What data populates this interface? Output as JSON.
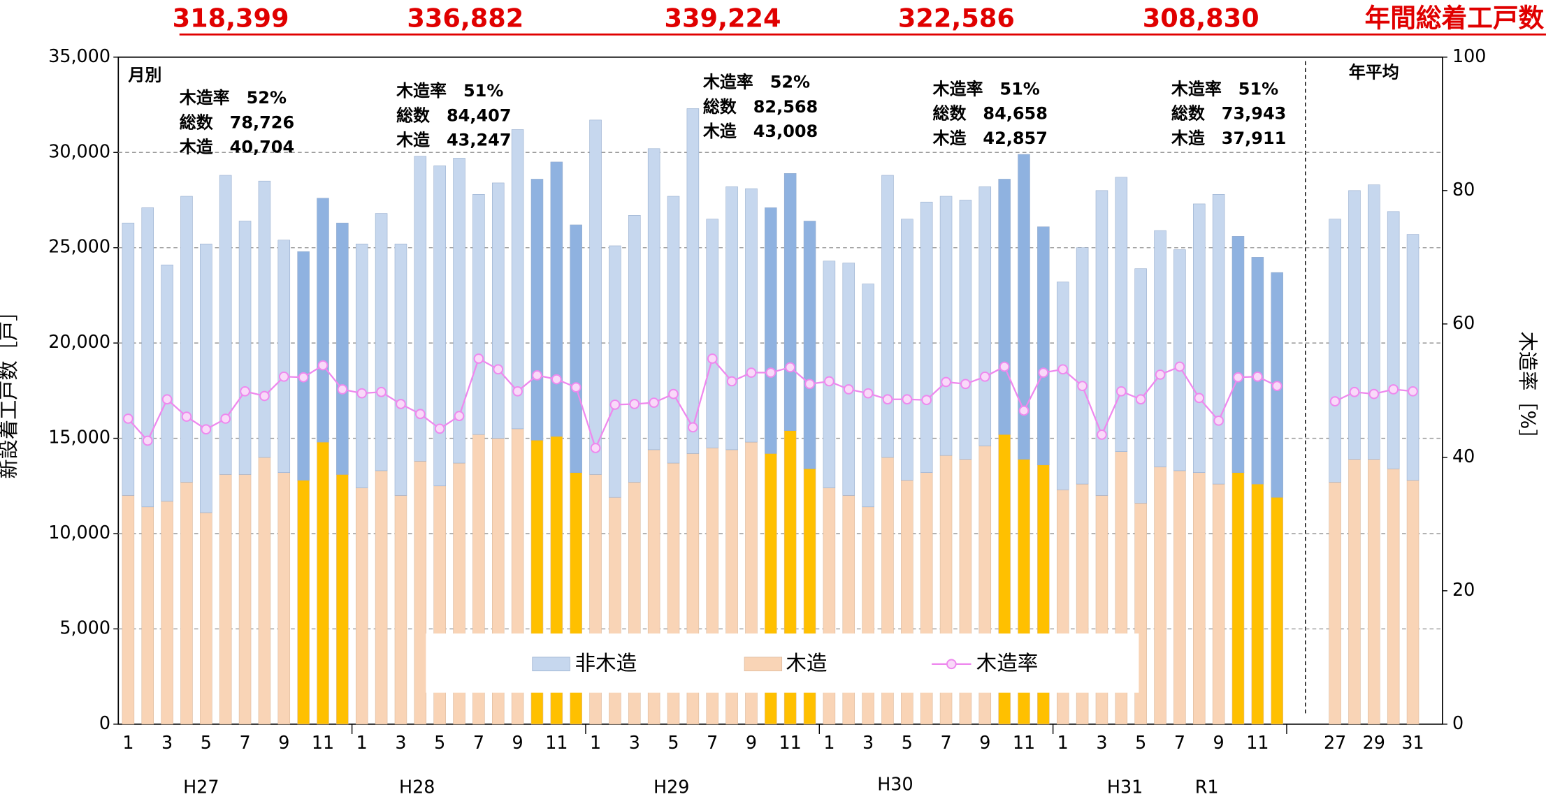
{
  "chart_data": {
    "type": "bar",
    "stacked": true,
    "categories": [
      "1",
      null,
      "3",
      null,
      "5",
      null,
      "7",
      null,
      "9",
      null,
      "11",
      null,
      "1",
      null,
      "3",
      null,
      "5",
      null,
      "7",
      null,
      "9",
      null,
      "11",
      null,
      "1",
      null,
      "3",
      null,
      "5",
      null,
      "7",
      null,
      "9",
      null,
      "11",
      null,
      "1",
      null,
      "3",
      null,
      "5",
      null,
      "7",
      null,
      "9",
      null,
      "11",
      null,
      "1",
      null,
      "3",
      null,
      "5",
      null,
      "7",
      null,
      "9",
      null,
      "11",
      null,
      "27",
      null,
      "29",
      null,
      "31"
    ],
    "groups": [
      "H27",
      "H28",
      "H29",
      "H30",
      "H31",
      "R1"
    ],
    "panel_labels": [
      "月別",
      "年平均"
    ],
    "y_label": "新設着工戸数［戸］",
    "y2_label": "木造率［%］",
    "annual_total_title": "年間総着工戸数",
    "annual_totals": [
      "318,399",
      "336,882",
      "339,224",
      "322,586",
      "308,830"
    ],
    "year_notes": [
      [
        "木造率　52%",
        "総数　78,726",
        "木造　40,704"
      ],
      [
        "木造率　51%",
        "総数　84,407",
        "木造　43,247"
      ],
      [
        "木造率　52%",
        "総数　82,568",
        "木造　43,008"
      ],
      [
        "木造率　51%",
        "総数　84,658",
        "木造　42,857"
      ],
      [
        "木造率　51%",
        "総数　73,943",
        "木造　37,911"
      ]
    ],
    "highlighted": [
      9,
      10,
      11,
      21,
      22,
      23,
      33,
      34,
      35,
      45,
      46,
      47,
      57,
      58,
      59
    ],
    "series": [
      {
        "name": "非木造",
        "color": "#c6d7ee",
        "highlight_color": "#8fb2e0",
        "values": [
          14300,
          15700,
          12400,
          15000,
          14100,
          15700,
          13300,
          14500,
          12200,
          12000,
          12800,
          13200,
          12800,
          13500,
          13200,
          16000,
          16800,
          16000,
          12600,
          13400,
          15700,
          13700,
          14400,
          13000,
          18600,
          13200,
          14000,
          15800,
          14000,
          18100,
          12000,
          13800,
          13300,
          12900,
          13500,
          13000,
          11900,
          12200,
          11700,
          14800,
          13700,
          14200,
          13600,
          13600,
          13600,
          13400,
          16000,
          12500,
          10900,
          12400,
          16000,
          14400,
          12300,
          12400,
          11600,
          14100,
          15200,
          12400,
          11900,
          11800,
          13800,
          14100,
          14400,
          13500,
          12900
        ]
      },
      {
        "name": "木造",
        "color": "#f9d4b6",
        "highlight_color": "#ffc000",
        "values": [
          12000,
          11400,
          11700,
          12700,
          11100,
          13100,
          13100,
          14000,
          13200,
          12800,
          14800,
          13100,
          12400,
          13300,
          12000,
          13800,
          12500,
          13700,
          15200,
          15000,
          15500,
          14900,
          15100,
          13200,
          13100,
          11900,
          12700,
          14400,
          13700,
          14200,
          14500,
          14400,
          14800,
          14200,
          15400,
          13400,
          12400,
          12000,
          11400,
          14000,
          12800,
          13200,
          14100,
          13900,
          14600,
          15200,
          13900,
          13600,
          12300,
          12600,
          12000,
          14300,
          11600,
          13500,
          13300,
          13200,
          12600,
          13200,
          12600,
          11900,
          12700,
          13900,
          13900,
          13400,
          12800
        ]
      },
      {
        "name": "木造率",
        "type": "line",
        "axis": "y2",
        "color": "#ee88ee",
        "values": [
          45.8,
          42.5,
          48.7,
          46.1,
          44.2,
          45.8,
          49.9,
          49.2,
          52.1,
          52.0,
          53.8,
          50.2,
          49.6,
          49.8,
          48.0,
          46.5,
          44.3,
          46.2,
          54.8,
          53.2,
          49.9,
          52.3,
          51.7,
          50.5,
          41.4,
          47.9,
          48.0,
          48.2,
          49.5,
          44.5,
          54.8,
          51.4,
          52.7,
          52.7,
          53.5,
          51.0,
          51.4,
          50.2,
          49.6,
          48.7,
          48.7,
          48.6,
          51.3,
          51.0,
          52.1,
          53.6,
          47.0,
          52.7,
          53.2,
          50.7,
          43.4,
          49.9,
          48.7,
          52.4,
          53.6,
          48.9,
          45.5,
          52.0,
          52.1,
          50.7,
          48.4,
          49.8,
          49.5,
          50.2,
          49.9
        ]
      }
    ],
    "ylim": [
      0,
      35000
    ],
    "yticks": [
      0,
      {
        "value": 5000,
        "label": "5,000"
      },
      {
        "value": 10000,
        "label": "10,000"
      },
      {
        "value": 15000,
        "label": "15,000"
      },
      {
        "value": 20000,
        "label": "20,000"
      },
      {
        "value": 25000,
        "label": "25,000"
      },
      {
        "value": 30000,
        "label": "30,000"
      },
      {
        "value": 35000,
        "label": "35,000"
      }
    ],
    "y2lim": [
      0,
      100
    ],
    "y2ticks": [
      0,
      20,
      40,
      60,
      80,
      100
    ],
    "grid": true,
    "legend": "bottom"
  }
}
